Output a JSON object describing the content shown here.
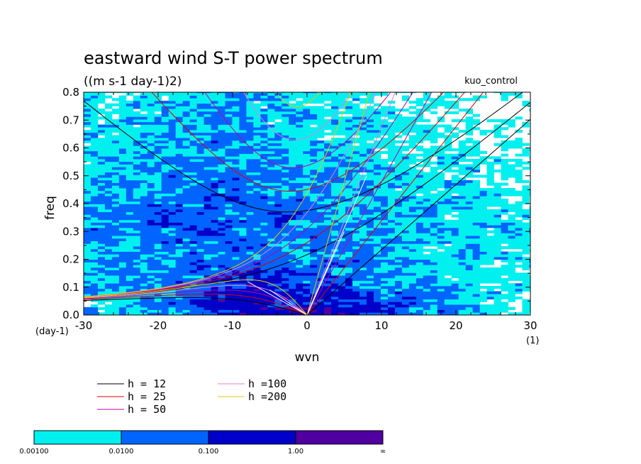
{
  "chart_data": {
    "type": "contour",
    "title": "eastward wind S-T power spectrum",
    "subtitle": "((m s-1 day-1)2)",
    "run_label": "kuo_control",
    "xlabel": "wvn",
    "ylabel": "freq",
    "x_unit_label": "(1)",
    "y_unit_label": "(day-1)",
    "xlim": [
      -30,
      30
    ],
    "ylim": [
      0,
      0.8
    ],
    "x_ticks": [
      -30,
      -20,
      -10,
      0,
      10,
      20,
      30
    ],
    "x_tick_labels": [
      "-30",
      "-20",
      "-10",
      "0",
      "10",
      "20",
      "30"
    ],
    "y_ticks": [
      0,
      0.1,
      0.2,
      0.3,
      0.4,
      0.5,
      0.6,
      0.7,
      0.8
    ],
    "y_tick_labels": [
      "0.0",
      "0.1",
      "0.2",
      "0.3",
      "0.4",
      "0.5",
      "0.6",
      "0.7",
      "0.8"
    ],
    "dispersion_curves": [
      {
        "label": "h = 12",
        "h": 12,
        "color": "#000000"
      },
      {
        "label": "h = 25",
        "h": 25,
        "color": "#e00000"
      },
      {
        "label": "h = 50",
        "h": 50,
        "color": "#c000a0"
      },
      {
        "label": "h =100",
        "h": 100,
        "color": "#e080e0"
      },
      {
        "label": "h =200",
        "h": 200,
        "color": "#e8c800"
      }
    ],
    "inner_curve_color": "#ffffff",
    "levels": {
      "colors": [
        "#00f0f0",
        "#0064ff",
        "#0000c8",
        "#5000a0"
      ],
      "labels": [
        "0.00100",
        "0.0100",
        "0.100",
        "1.00",
        "∞"
      ]
    }
  }
}
